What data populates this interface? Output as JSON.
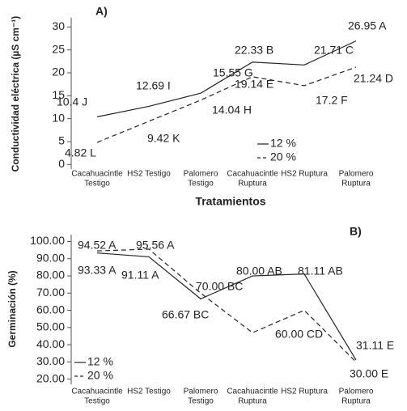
{
  "chart_data": [
    {
      "type": "line",
      "title": "A)",
      "ylabel": "Conductividad eléctrica (µS cm⁻¹)",
      "xlabel": "Tratamientos",
      "categories": [
        [
          "Cacahuacintle",
          "Testigo"
        ],
        [
          "HS2 Testigo"
        ],
        [
          "Palomero",
          "Testigo"
        ],
        [
          "Cacahuacintle",
          "Ruptura"
        ],
        [
          "HS2 Ruptura"
        ],
        [
          "Palomero",
          "Ruptura"
        ]
      ],
      "series": [
        {
          "name": "12 %",
          "color": "#222222",
          "dash": "solid",
          "values": [
            10.4,
            12.69,
            15.55,
            22.33,
            21.71,
            26.95
          ],
          "value_labels": [
            "10.4 J",
            "12.69 I",
            "15.55 G",
            "22.33 B",
            "21.71 C",
            "26.95 A"
          ]
        },
        {
          "name": "20 %",
          "color": "#222222",
          "dash": "dashed",
          "values": [
            4.82,
            9.42,
            14.04,
            19.14,
            17.2,
            21.24
          ],
          "value_labels": [
            "4.82 L",
            "9.42 K",
            "14.04 H",
            "19.14 E",
            "17.2 F",
            "21.24 D"
          ]
        }
      ],
      "ylim": [
        -1,
        32
      ],
      "yticks": [
        0,
        5,
        10,
        15,
        20,
        25,
        30
      ]
    },
    {
      "type": "line",
      "title": "B)",
      "ylabel": "Germinación (%)",
      "categories": [
        [
          "Cacahuacintle",
          "Testigo"
        ],
        [
          "HS2 Testigo"
        ],
        [
          "Palomero",
          "Testigo"
        ],
        [
          "Cacahuacintle",
          "Ruptura"
        ],
        [
          "HS2 Ruptura"
        ],
        [
          "Palomero",
          "Ruptura"
        ]
      ],
      "series": [
        {
          "name": "12 %",
          "color": "#222222",
          "dash": "solid",
          "values": [
            93.33,
            91.11,
            66.67,
            80.0,
            81.11,
            31.11
          ],
          "value_labels": [
            "93.33 A",
            "91.11 A",
            "66.67 BC",
            "80.00 AB",
            "81.11 AB",
            "31.11 E"
          ]
        },
        {
          "name": "20 %",
          "color": "#222222",
          "dash": "dashed",
          "values": [
            94.52,
            95.56,
            70.0,
            47,
            60.0,
            30.0
          ],
          "value_labels": [
            "94.52 A",
            "95.56 A",
            "70.00 BC",
            null,
            "60.00 CD",
            "30.00 E"
          ]
        }
      ],
      "ylim": [
        17,
        104
      ],
      "yticks": [
        {
          "value": 20,
          "label": "20.00"
        },
        {
          "value": 30,
          "label": "30.00"
        },
        {
          "value": 40,
          "label": "40.00"
        },
        {
          "value": 50,
          "label": "50.00"
        },
        {
          "value": 60,
          "label": "60.00"
        },
        {
          "value": 70,
          "label": "70.00"
        },
        {
          "value": 80,
          "label": "80.00"
        },
        {
          "value": 90,
          "label": "90.00"
        },
        {
          "value": 100,
          "label": "100.00"
        }
      ]
    }
  ]
}
